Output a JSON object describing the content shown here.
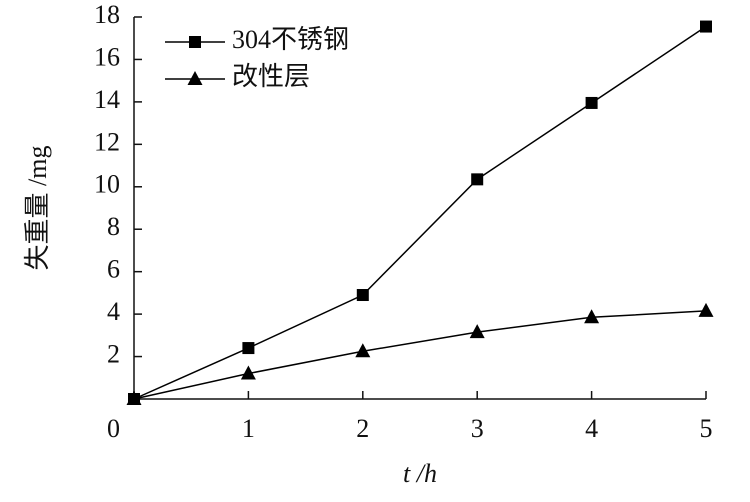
{
  "chart_data": {
    "type": "line",
    "x": [
      0,
      1,
      2,
      3,
      4,
      5
    ],
    "series": [
      {
        "name": "304不锈钢",
        "color": "#000000",
        "marker": "square",
        "values": [
          0,
          2.4,
          4.9,
          10.35,
          13.95,
          17.55
        ]
      },
      {
        "name": "改性层",
        "color": "#000000",
        "marker": "triangle",
        "values": [
          0,
          1.2,
          2.25,
          3.15,
          3.85,
          4.15
        ]
      }
    ],
    "xlabel": "t /h",
    "ylabel": "失重量 /mg",
    "xlim": [
      0,
      5
    ],
    "ylim": [
      0,
      18
    ],
    "xticks": [
      0,
      1,
      2,
      3,
      4,
      5
    ],
    "yticks": [
      2,
      4,
      6,
      8,
      10,
      12,
      14,
      16,
      18
    ],
    "legend": "upper left"
  }
}
